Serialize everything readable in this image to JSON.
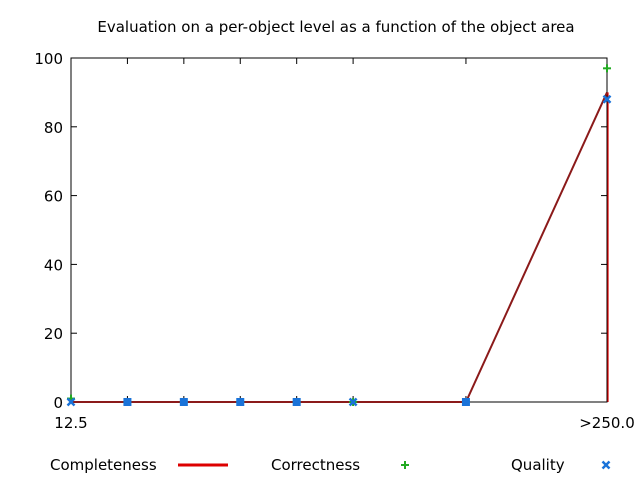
{
  "chart_data": {
    "type": "scatter",
    "title": "Evaluation on a per-object level as a function of the object area",
    "xlabel": "",
    "ylabel": "",
    "ylim": [
      0,
      100
    ],
    "y_ticks": [
      0,
      20,
      40,
      60,
      80,
      100
    ],
    "x_tick_labels": [
      "12.5",
      ">250.0"
    ],
    "x_points": [
      12.5,
      37.5,
      62.5,
      87.5,
      112.5,
      137.5,
      187.5,
      250.0
    ],
    "grid": false,
    "legend": "bottom",
    "series": [
      {
        "name": "Completeness",
        "style": "line",
        "color": "#dd0000",
        "values": [
          0,
          0,
          0,
          0,
          0,
          0,
          0,
          90
        ]
      },
      {
        "name": "Correctness",
        "style": "plus",
        "color": "#22aa22",
        "values": [
          1,
          0,
          0,
          0,
          0,
          0,
          0,
          97
        ]
      },
      {
        "name": "Quality",
        "style": "cross",
        "color": "#1a73d9",
        "values": [
          0,
          0,
          0,
          0,
          0,
          0,
          0,
          88
        ]
      }
    ]
  }
}
